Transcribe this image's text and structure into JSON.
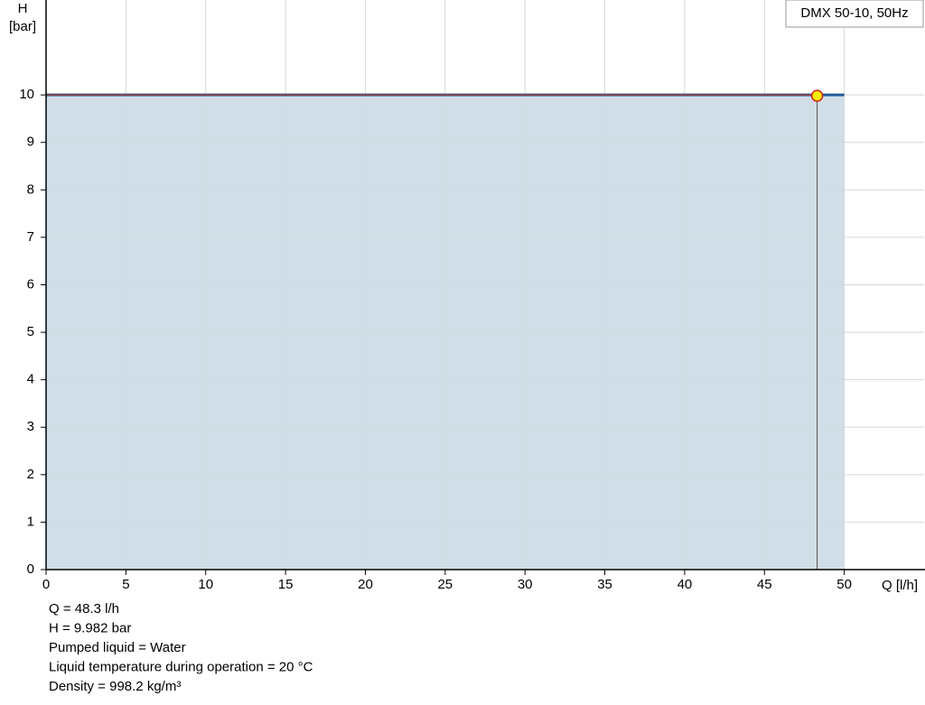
{
  "chart_data": {
    "type": "line",
    "legend_label": "DMX 50-10, 50Hz",
    "y_label_lines": [
      "H",
      "[bar]"
    ],
    "x_label": "Q [l/h]",
    "xlim": [
      0,
      55
    ],
    "ylim": [
      0,
      12
    ],
    "xticks": [
      0,
      5,
      10,
      15,
      20,
      25,
      30,
      35,
      40,
      45,
      50
    ],
    "yticks": [
      0,
      1,
      2,
      3,
      4,
      5,
      6,
      7,
      8,
      9,
      10
    ],
    "grid": true,
    "area_color": "#d0dce6",
    "series": [
      {
        "color": "#1f5b94",
        "x": [
          0,
          50
        ],
        "values": [
          10,
          10
        ]
      },
      {
        "color": "#c0392b",
        "x": [
          0,
          48.3
        ],
        "values": [
          10,
          10
        ]
      }
    ],
    "duty_point": {
      "x": 48.3,
      "y": 9.982,
      "color": "#ffee00"
    },
    "info": [
      "Q = 48.3 l/h",
      "H = 9.982 bar",
      "Pumped liquid = Water",
      "Liquid temperature during operation = 20 °C",
      "Density = 998.2 kg/m³"
    ]
  }
}
